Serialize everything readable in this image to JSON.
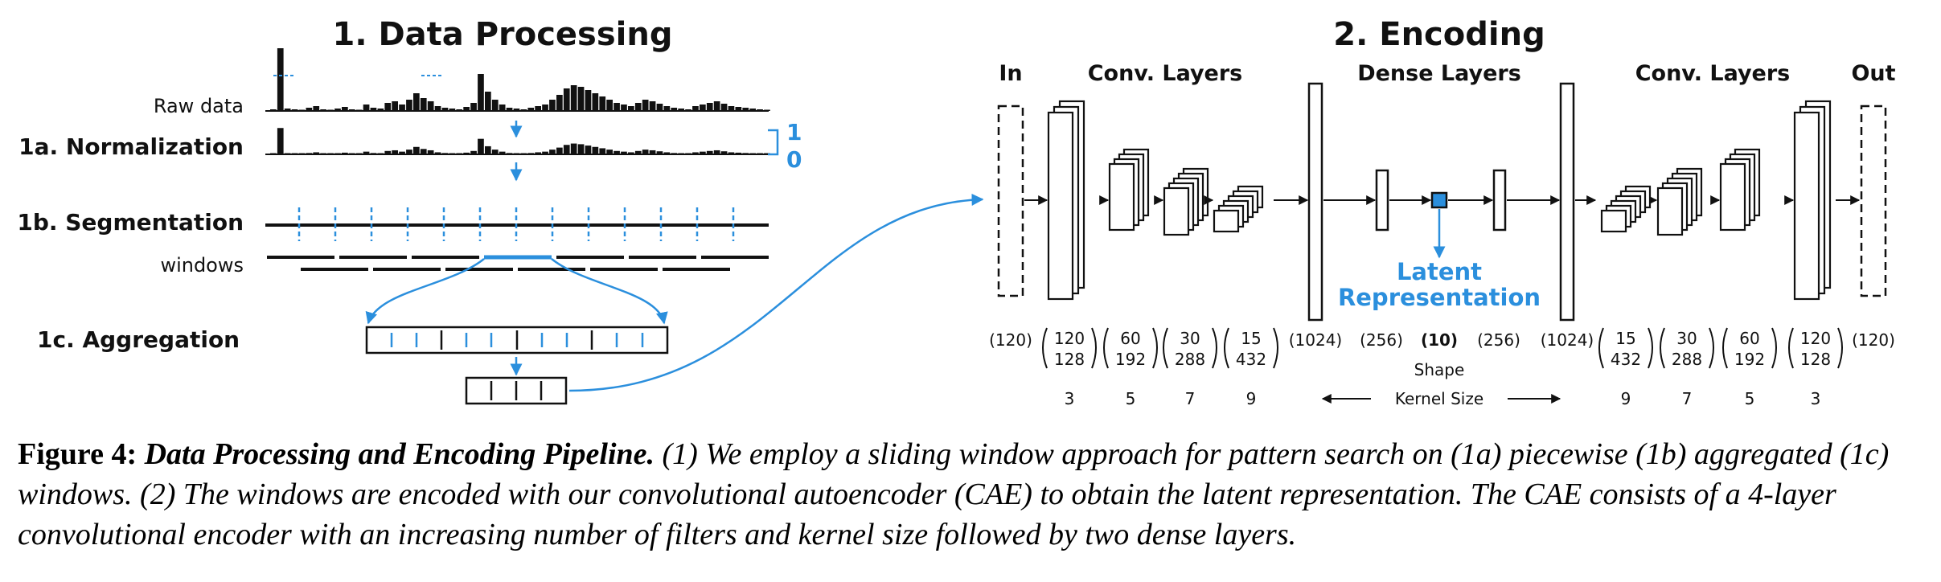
{
  "colors": {
    "accent": "#2b8fdd",
    "ink": "#111111"
  },
  "processing": {
    "title": "1. Data Processing",
    "raw_label": "Raw data",
    "norm_label": "1a. Normalization",
    "norm_hi": "1",
    "norm_lo": "0",
    "seg_label": "1b. Segmentation",
    "windows_label": "windows",
    "agg_label": "1c. Aggregation"
  },
  "encoding": {
    "title": "2. Encoding",
    "in_label": "In",
    "conv_left": "Conv. Layers",
    "dense_label": "Dense Layers",
    "conv_right": "Conv. Layers",
    "out_label": "Out",
    "latent_line1": "Latent",
    "latent_line2": "Representation",
    "shape_label": "Shape",
    "kernel_label": "Kernel Size",
    "shapes": {
      "in": "(120)",
      "d1": "(1024)",
      "d2": "(256)",
      "latent": "(10)",
      "d3": "(256)",
      "d4": "(1024)",
      "out": "(120)"
    },
    "enc_pairs": [
      [
        "120",
        "128"
      ],
      [
        "60",
        "192"
      ],
      [
        "30",
        "288"
      ],
      [
        "15",
        "432"
      ]
    ],
    "dec_pairs": [
      [
        "15",
        "432"
      ],
      [
        "30",
        "288"
      ],
      [
        "60",
        "192"
      ],
      [
        "120",
        "128"
      ]
    ],
    "enc_kernels": [
      "3",
      "5",
      "7",
      "9"
    ],
    "dec_kernels": [
      "9",
      "7",
      "5",
      "3"
    ]
  },
  "caption": {
    "label": "Figure 4:",
    "title": "Data Processing and Encoding Pipeline.",
    "body": "(1) We employ a sliding window approach for pattern search on (1a) piecewise (1b) aggregated (1c) windows. (2) The windows are encoded with our convolutional autoencoder (CAE) to obtain the latent representation. The CAE consists of a 4-layer convolutional encoder with an increasing number of filters and kernel size followed by two dense layers."
  }
}
